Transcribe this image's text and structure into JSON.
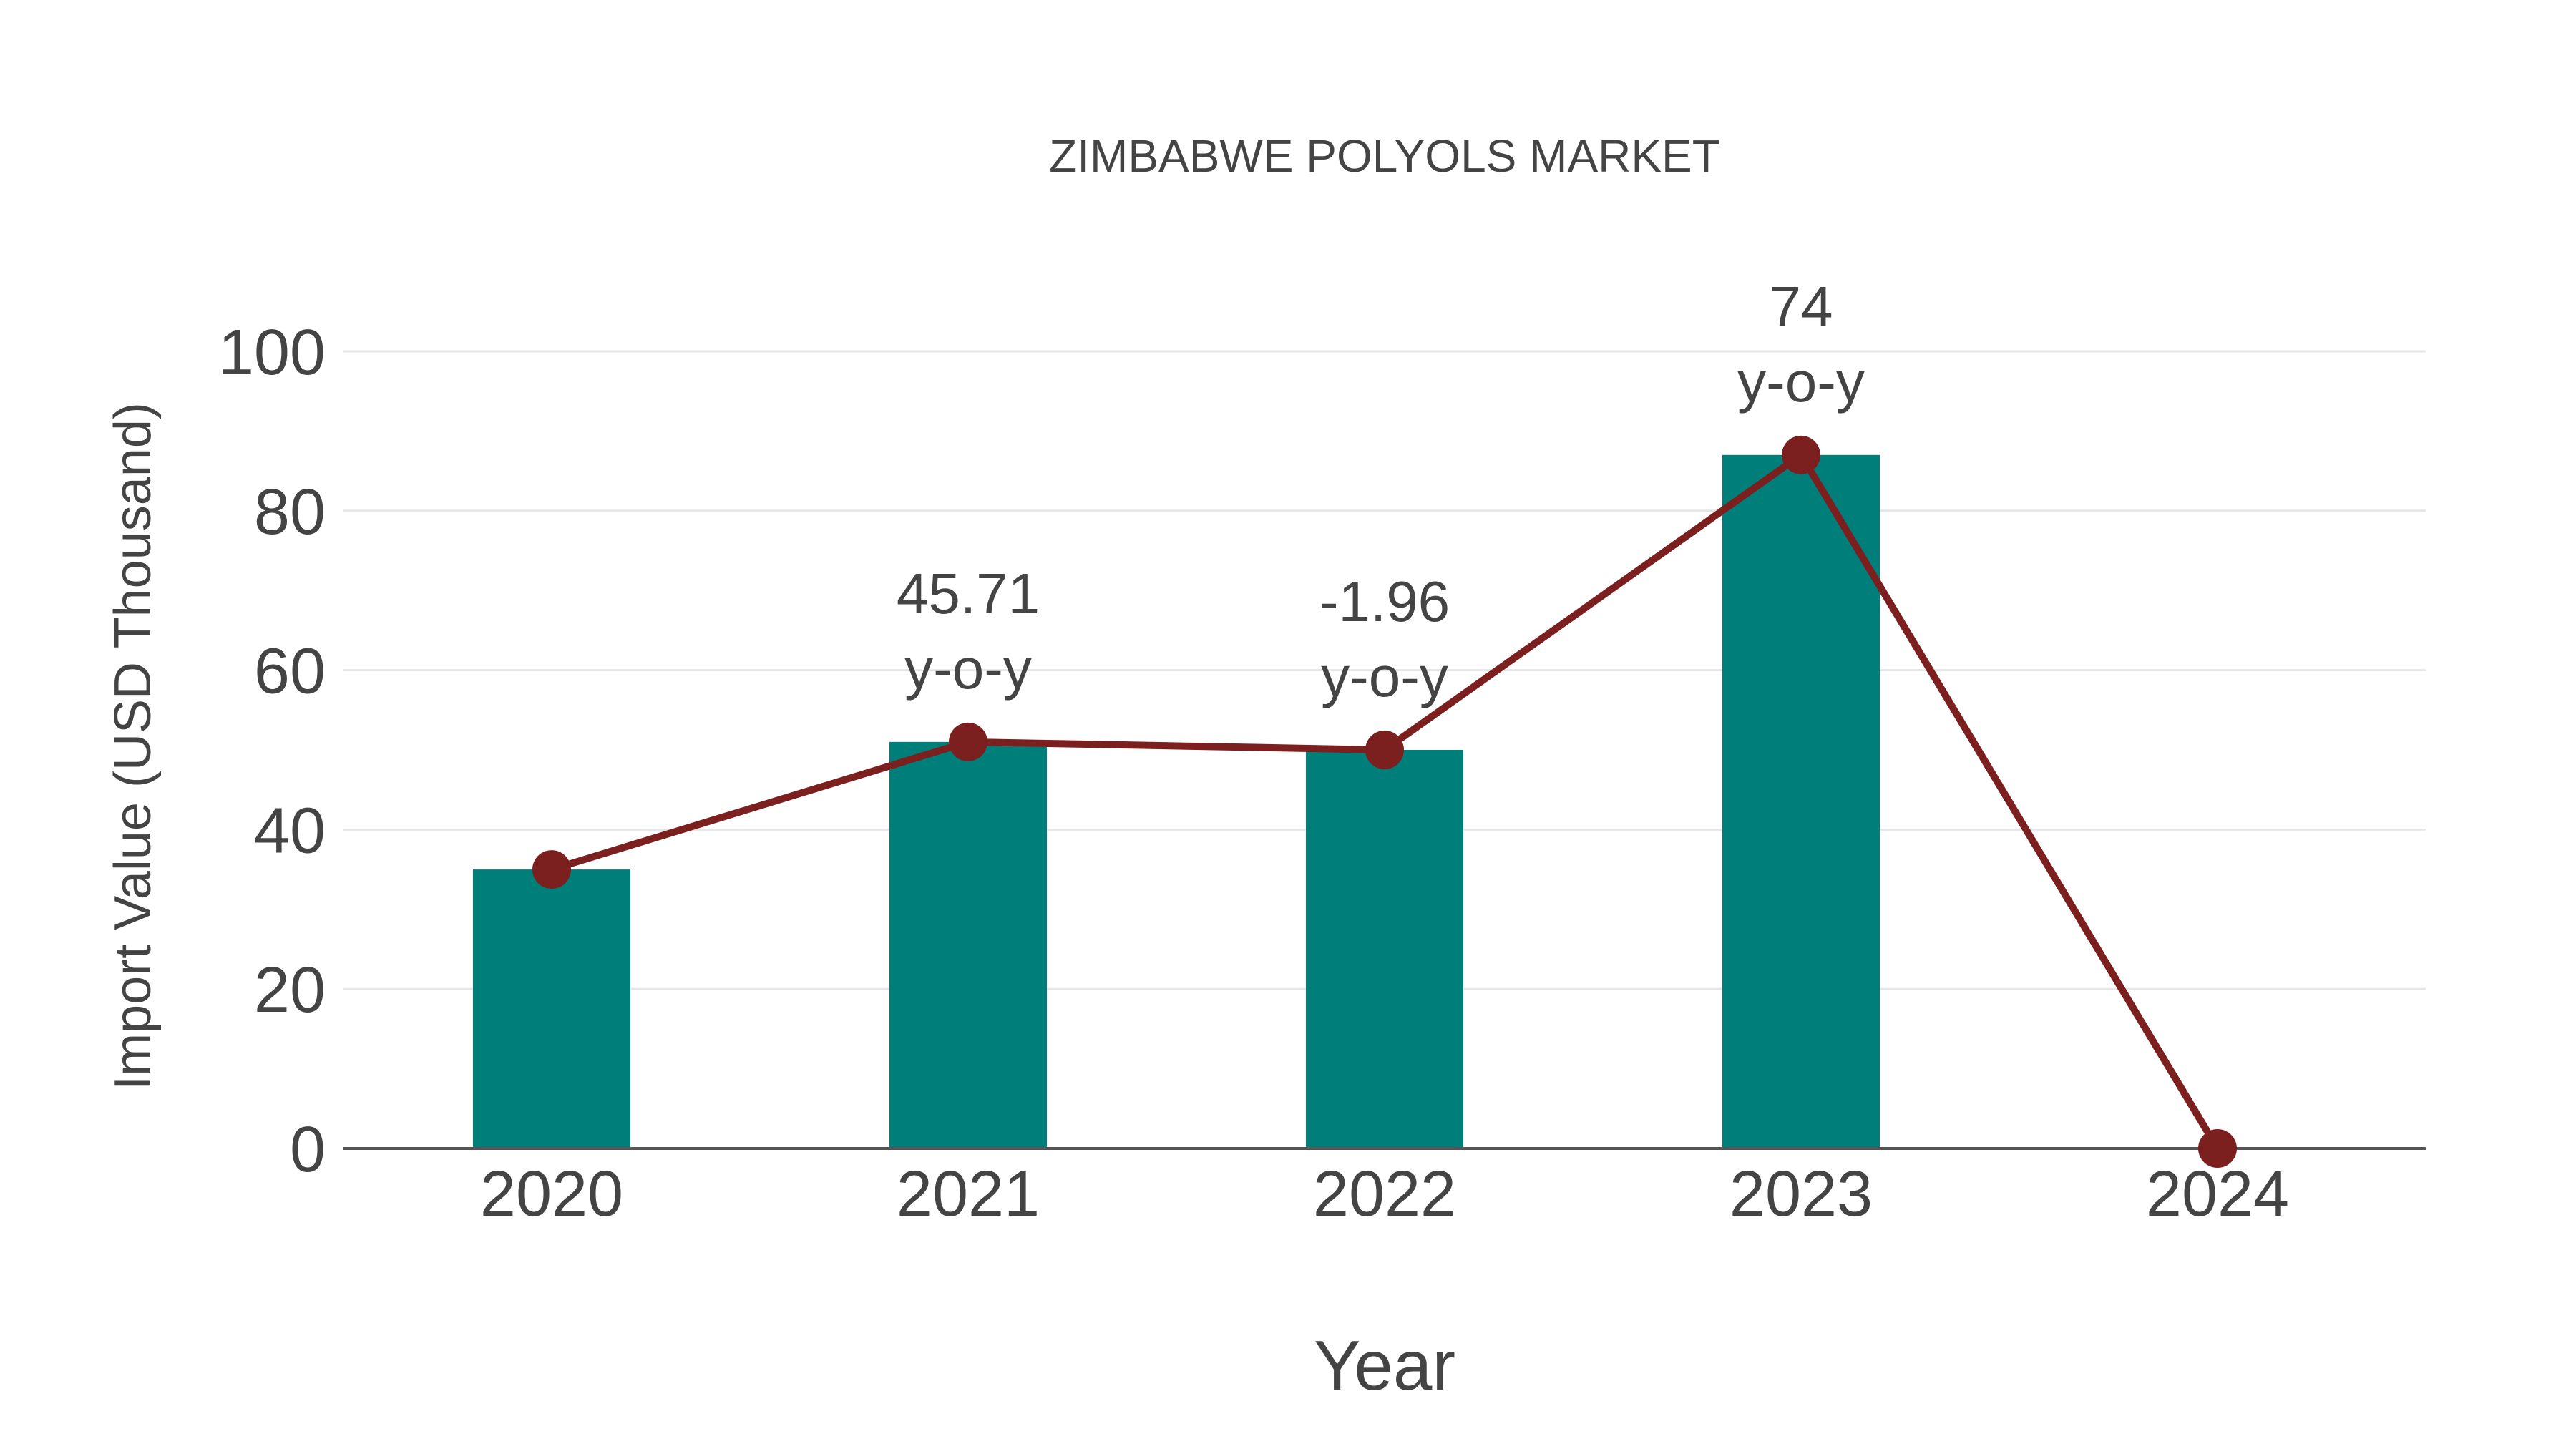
{
  "chart_data": {
    "type": "bar",
    "title": "ZIMBABWE POLYOLS MARKET",
    "xlabel": "Year",
    "ylabel": "Import Value (USD Thousand)",
    "categories": [
      "2020",
      "2021",
      "2022",
      "2023",
      "2024"
    ],
    "series": [
      {
        "name": "Import Value",
        "type": "bar",
        "color": "#007f7a",
        "values": [
          35,
          51,
          50,
          87,
          0
        ]
      },
      {
        "name": "Import Value trend",
        "type": "line",
        "color": "#7b1f1f",
        "values": [
          35,
          51,
          50,
          87,
          0
        ]
      }
    ],
    "annotations": [
      {
        "category": "2021",
        "value": "45.71",
        "suffix": "y-o-y"
      },
      {
        "category": "2022",
        "value": "-1.96",
        "suffix": "y-o-y"
      },
      {
        "category": "2023",
        "value": "74",
        "suffix": "y-o-y"
      }
    ],
    "yticks": [
      "0",
      "20",
      "40",
      "60",
      "80",
      "100"
    ],
    "ylim": [
      0,
      100
    ],
    "grid": true,
    "legend": "none"
  }
}
